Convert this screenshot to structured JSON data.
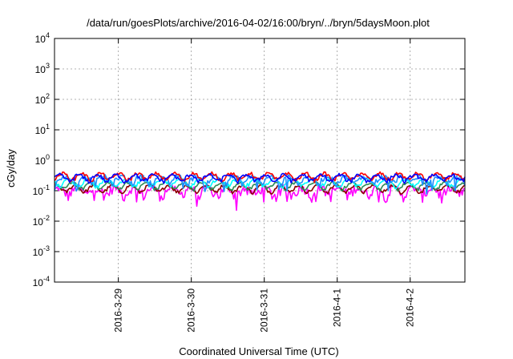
{
  "chart_data": {
    "type": "line",
    "title": "/data/run/goesPlots/archive/2016-04-02/16:00/bryn/../bryn/5daysMoon.plot",
    "xlabel": "Coordinated Universal Time (UTC)",
    "ylabel": "cGy/day",
    "yscale": "log",
    "ylim": [
      0.0001,
      10000
    ],
    "y_ticks": [
      {
        "value": 0.0001,
        "base": "10",
        "exp": "-4"
      },
      {
        "value": 0.001,
        "base": "10",
        "exp": "-3"
      },
      {
        "value": 0.01,
        "base": "10",
        "exp": "-2"
      },
      {
        "value": 0.1,
        "base": "10",
        "exp": "-1"
      },
      {
        "value": 1,
        "base": "10",
        "exp": "0"
      },
      {
        "value": 10,
        "base": "10",
        "exp": "1"
      },
      {
        "value": 100,
        "base": "10",
        "exp": "2"
      },
      {
        "value": 1000,
        "base": "10",
        "exp": "3"
      },
      {
        "value": 10000,
        "base": "10",
        "exp": "4"
      }
    ],
    "xlim": [
      "2016-03-28T03:00",
      "2016-04-02T18:00"
    ],
    "x_ticks": [
      {
        "value": "2016-03-29T00:00",
        "label": "2016-3-29"
      },
      {
        "value": "2016-03-30T00:00",
        "label": "2016-3-30"
      },
      {
        "value": "2016-03-31T00:00",
        "label": "2016-3-31"
      },
      {
        "value": "2016-04-01T00:00",
        "label": "2016-4-1"
      },
      {
        "value": "2016-04-02T00:00",
        "label": "2016-4-2"
      }
    ],
    "grid": true,
    "series": [
      {
        "color": "#ff00ff",
        "base": 0.1,
        "noise": 0.35,
        "dips": true
      },
      {
        "color": "#8b0000",
        "base": 0.12,
        "noise": 0.12,
        "dips": false
      },
      {
        "color": "#2e8b57",
        "base": 0.15,
        "noise": 0.12,
        "dips": false
      },
      {
        "color": "#00ffff",
        "base": 0.19,
        "noise": 0.14,
        "dips": false
      },
      {
        "color": "#1e90ff",
        "base": 0.24,
        "noise": 0.2,
        "dips": true
      },
      {
        "color": "#ff0000",
        "base": 0.3,
        "noise": 0.14,
        "dips": false
      },
      {
        "color": "#0000ff",
        "base": 0.27,
        "noise": 0.14,
        "dips": false
      }
    ]
  }
}
